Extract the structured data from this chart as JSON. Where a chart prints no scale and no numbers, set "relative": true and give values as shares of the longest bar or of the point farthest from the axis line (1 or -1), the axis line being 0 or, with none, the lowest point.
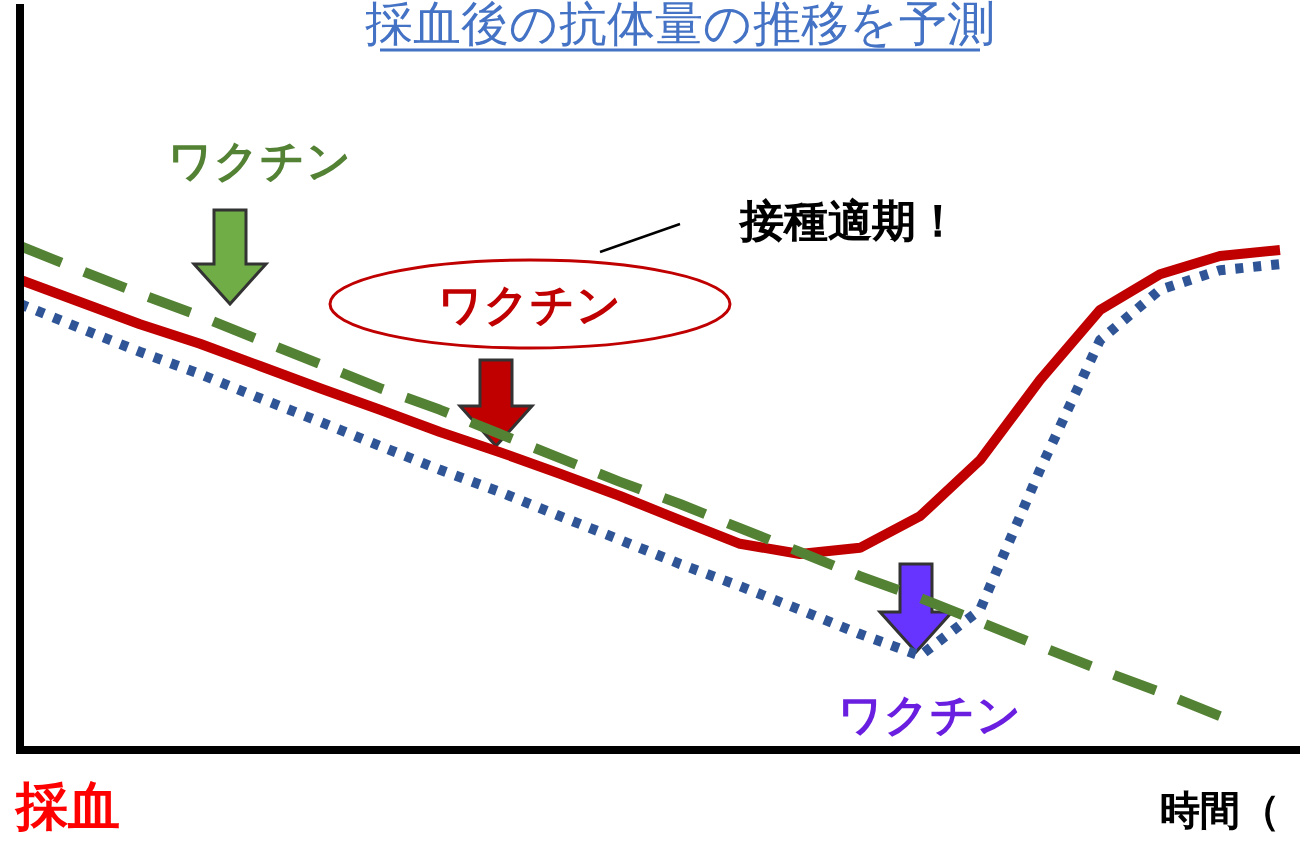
{
  "chart_data": {
    "type": "line",
    "relative": true,
    "title": "採血後の抗体量の推移を予測",
    "xlabel": "時間（",
    "categories": [
      null,
      null,
      null,
      null,
      null,
      null,
      null,
      null,
      null,
      null,
      null,
      null,
      null,
      null,
      null,
      null,
      null,
      null,
      null,
      null,
      null,
      null
    ],
    "series": [
      {
        "color": "#c00000",
        "line_style": "solid",
        "values": [
          0.933,
          0.889,
          0.845,
          0.806,
          0.762,
          0.718,
          0.675,
          0.631,
          0.591,
          0.548,
          0.504,
          0.456,
          0.409,
          0.389,
          0.401,
          0.464,
          0.575,
          0.734,
          0.873,
          0.944,
          0.98,
          0.992
        ]
      },
      {
        "color": "#2f5597",
        "line_style": "dotted",
        "values": [
          0.885,
          0.837,
          0.79,
          0.746,
          0.698,
          0.651,
          0.603,
          0.556,
          0.512,
          0.464,
          0.417,
          0.369,
          0.325,
          0.278,
          0.23,
          0.187,
          0.278,
          0.556,
          0.813,
          0.913,
          0.952,
          0.964
        ]
      },
      {
        "color": "#548235",
        "line_style": "dashed",
        "values": [
          1.0,
          0.952,
          0.905,
          0.861,
          0.813,
          0.766,
          0.718,
          0.675,
          0.627,
          0.579,
          0.532,
          0.488,
          0.44,
          0.393,
          0.345,
          0.302,
          0.254,
          0.206,
          0.159,
          0.115,
          0.067,
          null
        ]
      }
    ],
    "annotations": [
      "ワクチン",
      "接種適期！",
      "ワクチン",
      "ワクチン",
      "採血"
    ],
    "grid": false
  }
}
